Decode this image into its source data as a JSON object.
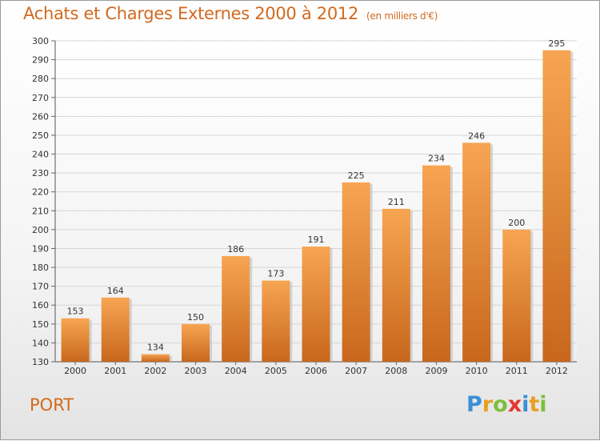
{
  "header": {
    "title": "Achats et Charges Externes 2000 à 2012",
    "unit": "(en milliers d'€)"
  },
  "footer": {
    "commune": "PORT",
    "logo_letters": [
      "P",
      "r",
      "o",
      "x",
      "i",
      "t",
      "i"
    ],
    "logo_colors": [
      "#3a8fd8",
      "#e8a023",
      "#7cbf3a",
      "#e2372e",
      "#3a8fd8",
      "#e8a023",
      "#7cbf3a"
    ]
  },
  "chart_data": {
    "type": "bar",
    "categories": [
      "2000",
      "2001",
      "2002",
      "2003",
      "2004",
      "2005",
      "2006",
      "2007",
      "2008",
      "2009",
      "2010",
      "2011",
      "2012"
    ],
    "values": [
      153,
      164,
      134,
      150,
      186,
      173,
      191,
      225,
      211,
      234,
      246,
      200,
      295
    ],
    "ylim": [
      130,
      300
    ],
    "yticks": [
      130,
      140,
      150,
      160,
      170,
      180,
      190,
      200,
      210,
      220,
      230,
      240,
      250,
      260,
      270,
      280,
      290,
      300
    ],
    "grid": true,
    "bar_color_top": "#f7a552",
    "bar_color_bottom": "#c8671c",
    "data_labels": true
  }
}
